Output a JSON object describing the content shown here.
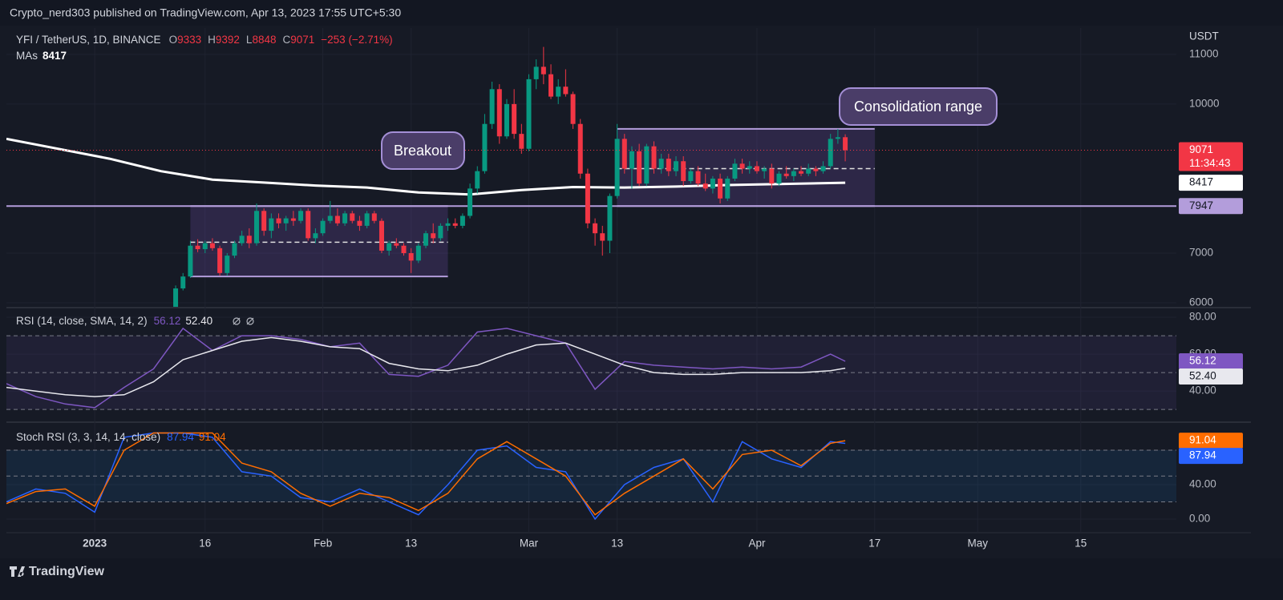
{
  "header": {
    "publisher": "Crypto_nerd303 published on TradingView.com, Apr 13, 2023 17:55 UTC+5:30",
    "brand": "TradingView"
  },
  "chart_data": [
    {
      "type": "candlestick",
      "title": "YFI / TetherUS, 1D, BINANCE",
      "ohlc_keys": [
        "O",
        "H",
        "L",
        "C"
      ],
      "change_label": "−253 (−2.71%)",
      "y_unit": "USDT",
      "countdown": "11:34:43",
      "up_color": "#089981",
      "down_color": "#f23645",
      "grid": true,
      "xlim": [
        "2022-12-20",
        "2023-05-28"
      ],
      "xticks": [
        {
          "value": "2023-01-01",
          "label": "2023"
        },
        {
          "value": "2023-01-16",
          "label": "16"
        },
        {
          "value": "2023-02-01",
          "label": "Feb"
        },
        {
          "value": "2023-02-13",
          "label": "13"
        },
        {
          "value": "2023-03-01",
          "label": "Mar"
        },
        {
          "value": "2023-03-13",
          "label": "13"
        },
        {
          "value": "2023-04-01",
          "label": "Apr"
        },
        {
          "value": "2023-04-17",
          "label": "17"
        },
        {
          "value": "2023-05-01",
          "label": "May"
        },
        {
          "value": "2023-05-15",
          "label": "15"
        }
      ],
      "ylim": [
        5920,
        11530
      ],
      "yticks": [
        6000,
        7000,
        10000,
        11000
      ],
      "x": [
        "2023-01-12",
        "2023-01-13",
        "2023-01-14",
        "2023-01-15",
        "2023-01-16",
        "2023-01-17",
        "2023-01-18",
        "2023-01-19",
        "2023-01-20",
        "2023-01-21",
        "2023-01-22",
        "2023-01-23",
        "2023-01-24",
        "2023-01-25",
        "2023-01-26",
        "2023-01-27",
        "2023-01-28",
        "2023-01-29",
        "2023-01-30",
        "2023-01-31",
        "2023-02-01",
        "2023-02-02",
        "2023-02-03",
        "2023-02-04",
        "2023-02-05",
        "2023-02-06",
        "2023-02-07",
        "2023-02-08",
        "2023-02-09",
        "2023-02-10",
        "2023-02-11",
        "2023-02-12",
        "2023-02-13",
        "2023-02-14",
        "2023-02-15",
        "2023-02-16",
        "2023-02-17",
        "2023-02-18",
        "2023-02-19",
        "2023-02-20",
        "2023-02-21",
        "2023-02-22",
        "2023-02-23",
        "2023-02-24",
        "2023-02-25",
        "2023-02-26",
        "2023-02-27",
        "2023-02-28",
        "2023-03-01",
        "2023-03-02",
        "2023-03-03",
        "2023-03-04",
        "2023-03-05",
        "2023-03-06",
        "2023-03-07",
        "2023-03-08",
        "2023-03-09",
        "2023-03-10",
        "2023-03-11",
        "2023-03-12",
        "2023-03-13",
        "2023-03-14",
        "2023-03-15",
        "2023-03-16",
        "2023-03-17",
        "2023-03-18",
        "2023-03-19",
        "2023-03-20",
        "2023-03-21",
        "2023-03-22",
        "2023-03-23",
        "2023-03-24",
        "2023-03-25",
        "2023-03-26",
        "2023-03-27",
        "2023-03-28",
        "2023-03-29",
        "2023-03-30",
        "2023-03-31",
        "2023-04-01",
        "2023-04-02",
        "2023-04-03",
        "2023-04-04",
        "2023-04-05",
        "2023-04-06",
        "2023-04-07",
        "2023-04-08",
        "2023-04-09",
        "2023-04-10",
        "2023-04-11",
        "2023-04-12",
        "2023-04-13"
      ],
      "open": [
        5900,
        6290,
        6530,
        7150,
        7080,
        7200,
        7100,
        6600,
        6950,
        7200,
        7350,
        7200,
        7850,
        7450,
        7700,
        7600,
        7700,
        7650,
        7850,
        7300,
        7400,
        7650,
        7750,
        7600,
        7800,
        7650,
        7550,
        7800,
        7650,
        7050,
        7200,
        7150,
        7000,
        6850,
        7150,
        7400,
        7300,
        7550,
        7600,
        7550,
        7750,
        8300,
        8650,
        9600,
        10300,
        9350,
        10000,
        9400,
        9100,
        10500,
        10750,
        10600,
        10150,
        10350,
        10200,
        9600,
        8600,
        7600,
        7400,
        7250,
        8150,
        9300,
        8700,
        9050,
        8400,
        9150,
        8700,
        8900,
        8650,
        8850,
        8450,
        8650,
        8400,
        8300,
        8500,
        8100,
        8500,
        8800,
        8700,
        8750,
        8650,
        8700,
        8400,
        8600,
        8550,
        8650,
        8600,
        8700,
        8650,
        8750,
        9300,
        9333
      ],
      "high": [
        6350,
        6600,
        7250,
        7280,
        7250,
        7300,
        7150,
        7000,
        7250,
        7450,
        7500,
        8000,
        7900,
        7800,
        7800,
        7750,
        7850,
        7900,
        7900,
        7500,
        7700,
        8050,
        7900,
        7850,
        7850,
        7750,
        7850,
        7850,
        7700,
        7250,
        7300,
        7200,
        7100,
        7200,
        7450,
        7600,
        7600,
        7700,
        7700,
        7800,
        8400,
        8750,
        9800,
        10450,
        10400,
        10100,
        10300,
        9600,
        10600,
        10900,
        11150,
        10800,
        10500,
        10700,
        10250,
        9700,
        8700,
        7700,
        7550,
        8200,
        9600,
        9400,
        9150,
        9200,
        9200,
        9250,
        9000,
        9000,
        8950,
        8950,
        8700,
        8750,
        8600,
        8550,
        8600,
        8550,
        8900,
        8900,
        8850,
        8850,
        8750,
        8800,
        8650,
        8750,
        8700,
        8750,
        8800,
        8750,
        8850,
        9400,
        9500,
        9392
      ],
      "low": [
        5850,
        6250,
        6500,
        7020,
        7000,
        7050,
        6550,
        6550,
        6900,
        7150,
        7100,
        7150,
        7350,
        7300,
        7500,
        7450,
        7550,
        7600,
        7250,
        7200,
        7350,
        7600,
        7550,
        7550,
        7600,
        7450,
        7500,
        7600,
        7000,
        6950,
        7100,
        6950,
        6600,
        6800,
        7100,
        7200,
        7250,
        7450,
        7500,
        7500,
        7700,
        8200,
        8600,
        9500,
        9200,
        9300,
        9300,
        9000,
        9050,
        10300,
        10400,
        10100,
        10000,
        10150,
        9500,
        8500,
        7500,
        7150,
        6950,
        7000,
        8100,
        8600,
        8300,
        8350,
        8350,
        8600,
        8600,
        8550,
        8550,
        8350,
        8400,
        8350,
        8250,
        8200,
        8000,
        8050,
        8450,
        8600,
        8600,
        8600,
        8500,
        8300,
        8350,
        8500,
        8450,
        8550,
        8550,
        8550,
        8600,
        8700,
        9200,
        8848
      ],
      "close": [
        6290,
        6530,
        7150,
        7080,
        7200,
        7100,
        6600,
        6950,
        7200,
        7350,
        7200,
        7850,
        7450,
        7700,
        7600,
        7700,
        7650,
        7850,
        7300,
        7400,
        7650,
        7750,
        7600,
        7800,
        7650,
        7550,
        7800,
        7650,
        7050,
        7200,
        7150,
        7000,
        6850,
        7150,
        7400,
        7300,
        7550,
        7600,
        7550,
        7750,
        8300,
        8650,
        9600,
        10300,
        9350,
        10000,
        9400,
        9100,
        10500,
        10750,
        10600,
        10150,
        10350,
        10200,
        9600,
        8600,
        7600,
        7400,
        7250,
        8150,
        9300,
        8700,
        9050,
        8400,
        9150,
        8700,
        8900,
        8650,
        8850,
        8450,
        8650,
        8400,
        8300,
        8500,
        8100,
        8500,
        8800,
        8700,
        8750,
        8650,
        8700,
        8400,
        8600,
        8550,
        8650,
        8600,
        8700,
        8650,
        8750,
        9300,
        9333,
        9071
      ],
      "ma": {
        "name": "MAs",
        "color": "#ffffff",
        "x": [
          "2022-12-20",
          "2022-12-27",
          "2023-01-03",
          "2023-01-10",
          "2023-01-17",
          "2023-01-24",
          "2023-01-31",
          "2023-02-07",
          "2023-02-14",
          "2023-02-21",
          "2023-02-28",
          "2023-03-07",
          "2023-03-14",
          "2023-03-21",
          "2023-03-28",
          "2023-04-04",
          "2023-04-13"
        ],
        "values": [
          9300,
          9100,
          8900,
          8650,
          8480,
          8420,
          8360,
          8320,
          8220,
          8180,
          8270,
          8330,
          8320,
          8340,
          8370,
          8390,
          8417
        ]
      },
      "hline": {
        "value": 7947,
        "color": "#b39ddb"
      },
      "ranges": [
        {
          "x0": "2023-01-14",
          "x1": "2023-02-18",
          "top": 7947,
          "bottom": 6530,
          "mid": 7220
        },
        {
          "x0": "2023-03-13",
          "x1": "2023-04-17",
          "top": 9500,
          "bottom": 7947,
          "mid": 8700
        }
      ],
      "annotations": [
        "Breakout",
        "Consolidation range"
      ]
    },
    {
      "type": "line",
      "title": "RSI (14, close, SMA, 14, 2)",
      "ylim": [
        24,
        84.8
      ],
      "yticks": [
        {
          "value": 40,
          "label": "40.00"
        },
        {
          "value": 60,
          "label": "60.00"
        },
        {
          "value": 80,
          "label": "80.00"
        }
      ],
      "bands": [
        30,
        50,
        70
      ],
      "band_color": "#7e57c2",
      "x": [
        "2022-12-20",
        "2022-12-24",
        "2022-12-28",
        "2023-01-01",
        "2023-01-05",
        "2023-01-09",
        "2023-01-13",
        "2023-01-17",
        "2023-01-21",
        "2023-01-25",
        "2023-01-29",
        "2023-02-02",
        "2023-02-06",
        "2023-02-10",
        "2023-02-14",
        "2023-02-18",
        "2023-02-22",
        "2023-02-26",
        "2023-03-02",
        "2023-03-06",
        "2023-03-10",
        "2023-03-14",
        "2023-03-18",
        "2023-03-22",
        "2023-03-26",
        "2023-03-30",
        "2023-04-03",
        "2023-04-07",
        "2023-04-11",
        "2023-04-13"
      ],
      "series": [
        {
          "color": "#7e57c2",
          "text_color": "#ffffff",
          "values": [
            44,
            37,
            33,
            31,
            42,
            52,
            74,
            62,
            70,
            70,
            68,
            64,
            66,
            49,
            48,
            54,
            72,
            74,
            70,
            66,
            41,
            56,
            54,
            53,
            52,
            53,
            52,
            53,
            60,
            56.12
          ]
        },
        {
          "color": "#e8e8ee",
          "text_color": "#131722",
          "values": [
            42,
            40,
            38,
            37,
            38,
            45,
            57,
            62,
            67,
            69,
            67,
            64,
            63,
            55,
            52,
            51,
            54,
            60,
            65,
            66,
            60,
            54,
            50,
            49,
            49,
            50,
            50,
            50,
            51,
            52.4
          ],
          "value_labels": [
            null,
            null,
            null,
            null,
            null,
            null,
            null,
            null,
            null,
            null,
            null,
            null,
            null,
            null,
            null,
            null,
            null,
            null,
            null,
            null,
            null,
            null,
            null,
            null,
            null,
            null,
            null,
            null,
            null,
            "52.40"
          ]
        }
      ]
    },
    {
      "type": "line",
      "title": "Stoch RSI (3, 3, 14, 14, close)",
      "ylim": [
        -15.8,
        110.7
      ],
      "yticks": [
        {
          "value": 0,
          "label": "0.00"
        },
        {
          "value": 40,
          "label": "40.00"
        },
        {
          "value": 80,
          "label": "80.00"
        }
      ],
      "bands": [
        20,
        50,
        80
      ],
      "band_color": "#2196f3",
      "x": [
        "2022-12-20",
        "2022-12-24",
        "2022-12-28",
        "2023-01-01",
        "2023-01-05",
        "2023-01-09",
        "2023-01-13",
        "2023-01-17",
        "2023-01-21",
        "2023-01-25",
        "2023-01-29",
        "2023-02-02",
        "2023-02-06",
        "2023-02-10",
        "2023-02-14",
        "2023-02-18",
        "2023-02-22",
        "2023-02-26",
        "2023-03-02",
        "2023-03-06",
        "2023-03-10",
        "2023-03-14",
        "2023-03-18",
        "2023-03-22",
        "2023-03-26",
        "2023-03-30",
        "2023-04-03",
        "2023-04-07",
        "2023-04-11",
        "2023-04-13"
      ],
      "series": [
        {
          "color": "#2962ff",
          "text_color": "#ffffff",
          "values": [
            20,
            35,
            30,
            8,
            95,
            100,
            100,
            95,
            55,
            50,
            25,
            20,
            35,
            20,
            5,
            40,
            80,
            85,
            60,
            55,
            0,
            40,
            60,
            70,
            20,
            90,
            70,
            60,
            90,
            87.94
          ]
        },
        {
          "color": "#ff6d00",
          "text_color": "#ffffff",
          "values": [
            18,
            32,
            35,
            15,
            80,
            100,
            100,
            100,
            65,
            55,
            30,
            15,
            30,
            25,
            10,
            30,
            70,
            90,
            70,
            50,
            5,
            30,
            50,
            70,
            35,
            75,
            80,
            62,
            88,
            91.04
          ]
        }
      ]
    }
  ]
}
